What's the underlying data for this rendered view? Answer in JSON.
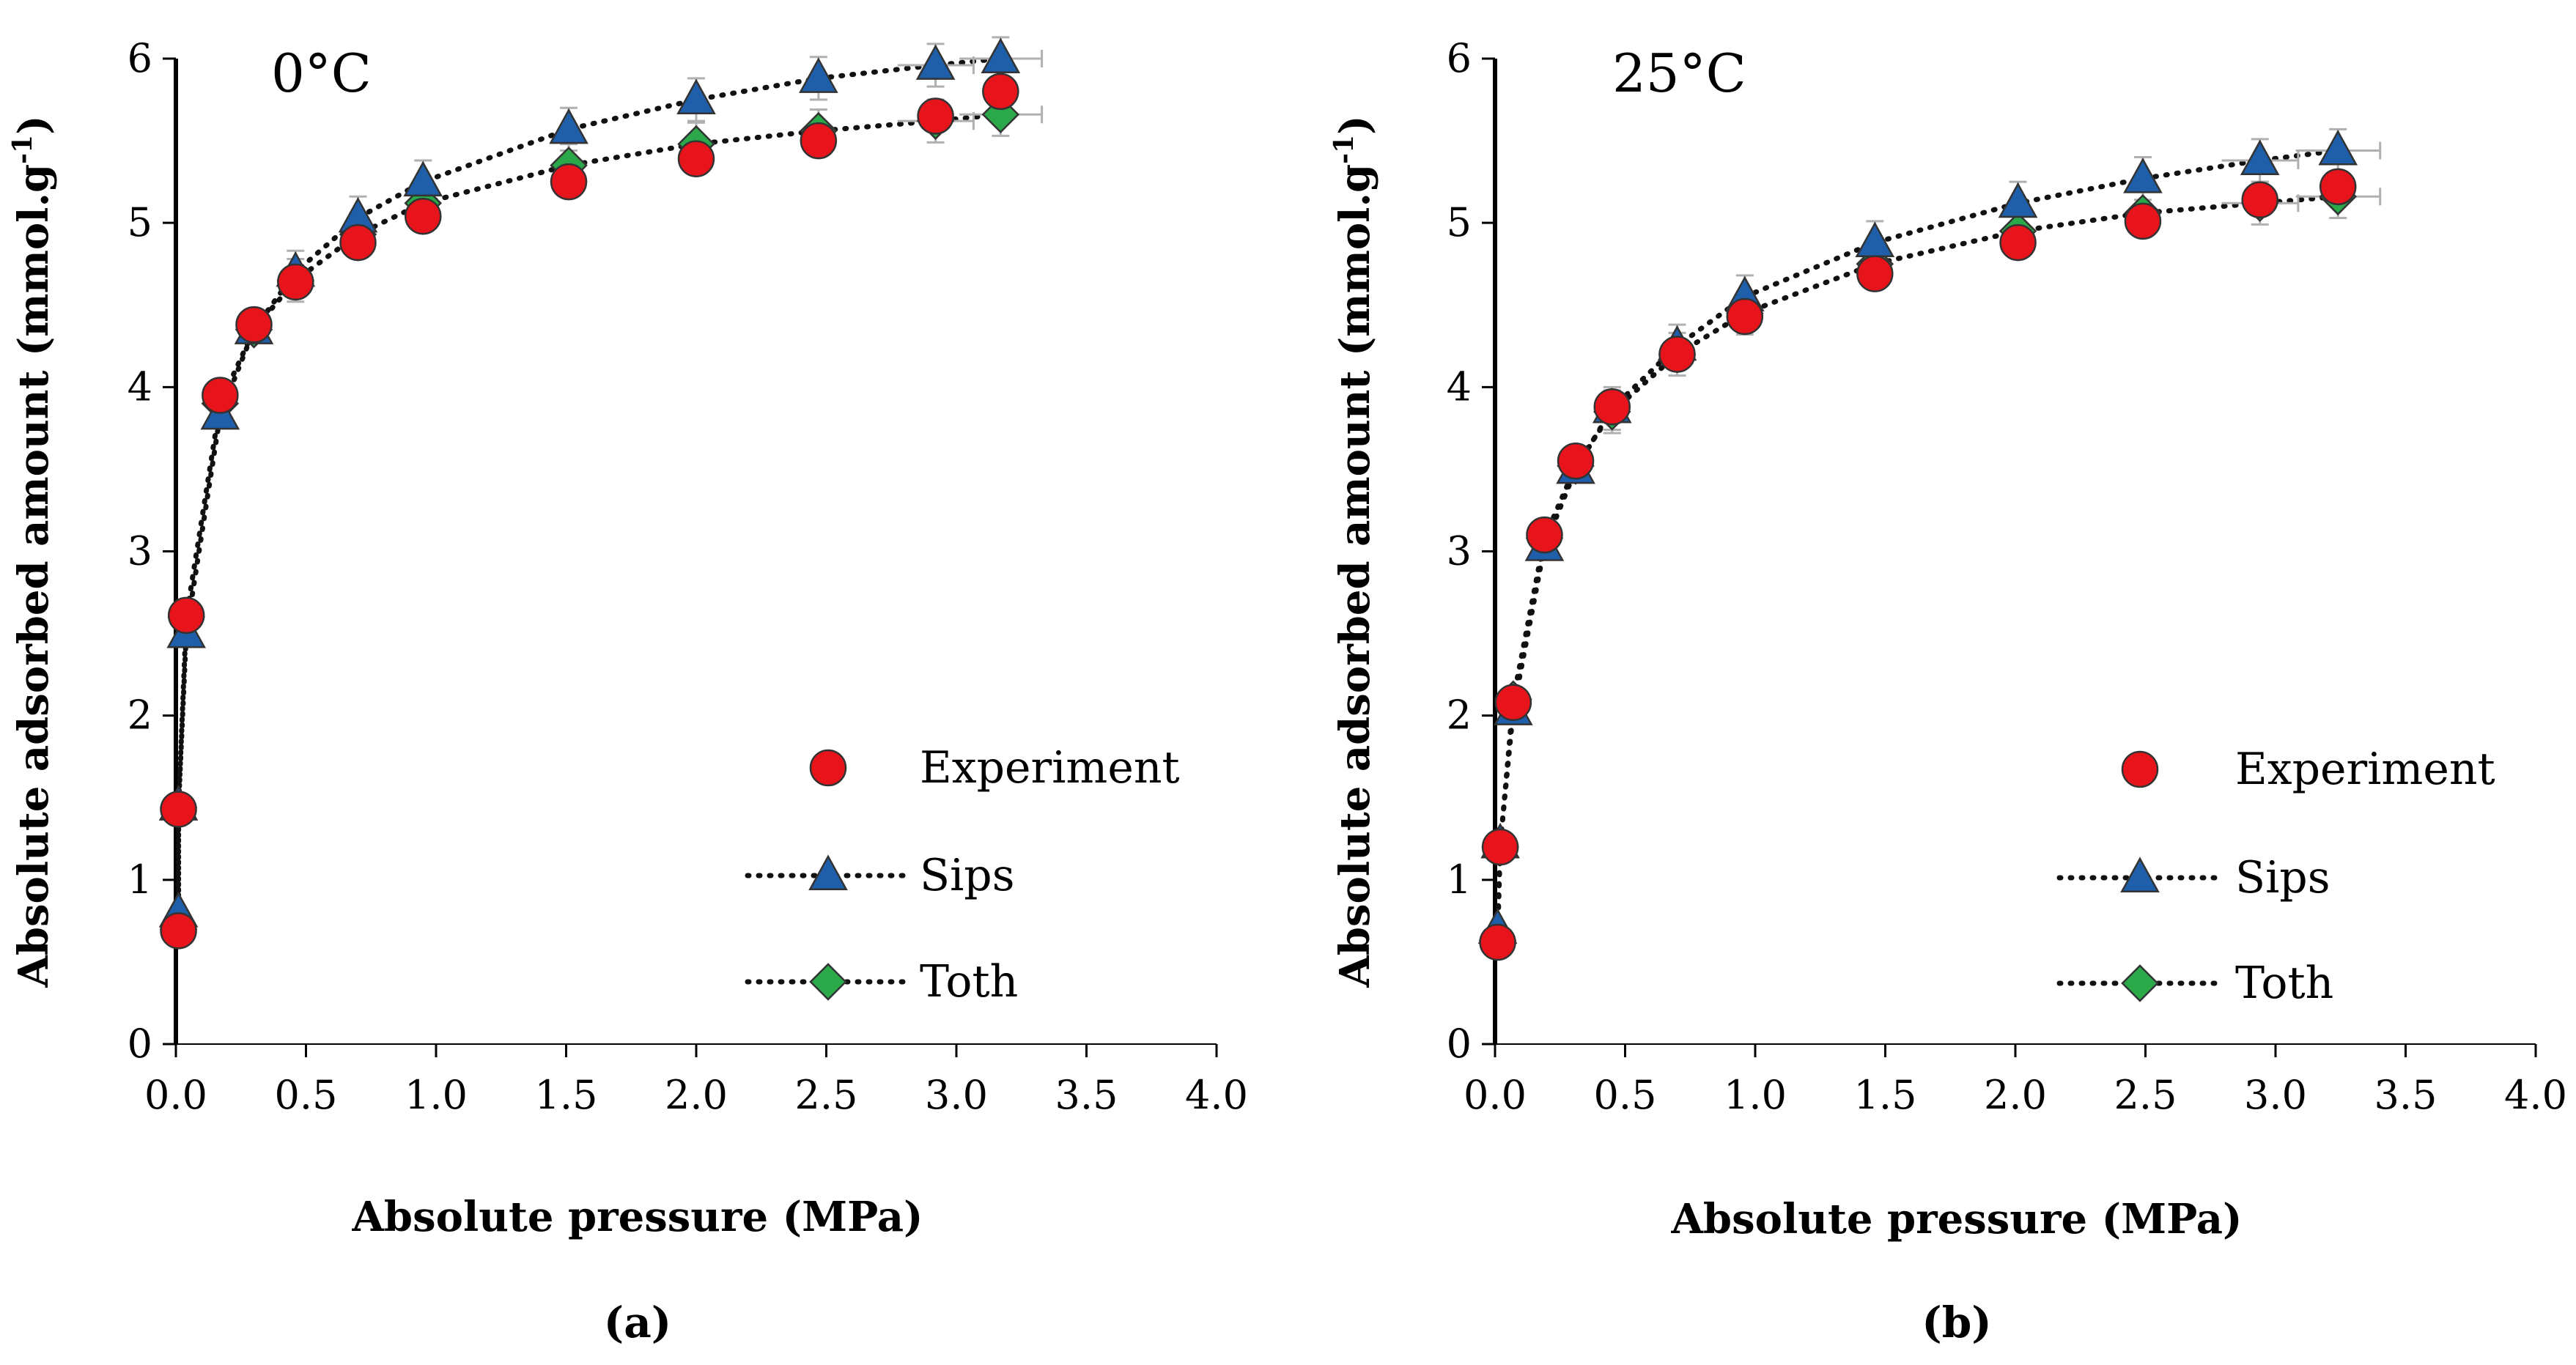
{
  "colors": {
    "experiment_fill": "#e8141b",
    "sips_fill": "#1f5ea8",
    "toth_fill": "#2aa84a",
    "marker_edge": "#333333",
    "errorbar": "#b0b0b0",
    "fit_line": "#111111"
  },
  "chart_data": [
    {
      "type": "scatter",
      "panel_label": "(a)",
      "annotation": "0°C",
      "xlabel": "Absolute pressure (MPa)",
      "ylabel_main": "Absolute adsorbed amount (mmol.g",
      "ylabel_sup": "-1",
      "ylabel_end": ")",
      "xlim": [
        0,
        4.0
      ],
      "ylim": [
        0,
        6
      ],
      "xticks": [
        "0.0",
        "0.5",
        "1.0",
        "1.5",
        "2.0",
        "2.5",
        "3.0",
        "3.5",
        "4.0"
      ],
      "yticks": [
        "0",
        "1",
        "2",
        "3",
        "4",
        "5",
        "6"
      ],
      "legend_position": "bottom-right",
      "series": [
        {
          "name": "Experiment",
          "marker": "circle",
          "x": [
            0.01,
            0.01,
            0.04,
            0.17,
            0.3,
            0.46,
            0.7,
            0.95,
            1.51,
            2.0,
            2.47,
            2.92,
            3.17
          ],
          "y": [
            0.69,
            1.43,
            2.61,
            3.95,
            4.38,
            4.64,
            4.88,
            5.04,
            5.25,
            5.39,
            5.5,
            5.65,
            5.8
          ]
        },
        {
          "name": "Sips",
          "marker": "triangle",
          "fit": true,
          "x": [
            0.01,
            0.01,
            0.04,
            0.17,
            0.3,
            0.46,
            0.7,
            0.95,
            1.51,
            2.0,
            2.47,
            2.92,
            3.17
          ],
          "y": [
            0.8,
            1.45,
            2.5,
            3.83,
            4.35,
            4.7,
            5.03,
            5.25,
            5.57,
            5.75,
            5.88,
            5.96,
            6.0
          ]
        },
        {
          "name": "Toth",
          "marker": "diamond",
          "fit": true,
          "x": [
            0.01,
            0.01,
            0.04,
            0.17,
            0.3,
            0.46,
            0.7,
            0.95,
            1.51,
            2.0,
            2.47,
            2.92,
            3.17
          ],
          "y": [
            0.7,
            1.44,
            2.6,
            3.9,
            4.35,
            4.65,
            4.93,
            5.12,
            5.35,
            5.48,
            5.56,
            5.62,
            5.66
          ]
        }
      ]
    },
    {
      "type": "scatter",
      "panel_label": "(b)",
      "annotation": "25°C",
      "xlabel": "Absolute pressure (MPa)",
      "ylabel_main": "Absolute adsorbed amount (mmol.g",
      "ylabel_sup": "-1",
      "ylabel_end": ")",
      "xlim": [
        0,
        4.0
      ],
      "ylim": [
        0,
        6
      ],
      "xticks": [
        "0.0",
        "0.5",
        "1.0",
        "1.5",
        "2.0",
        "2.5",
        "3.0",
        "3.5",
        "4.0"
      ],
      "yticks": [
        "0",
        "1",
        "2",
        "3",
        "4",
        "5",
        "6"
      ],
      "legend_position": "bottom-right",
      "series": [
        {
          "name": "Experiment",
          "marker": "circle",
          "x": [
            0.01,
            0.02,
            0.07,
            0.19,
            0.31,
            0.45,
            0.7,
            0.96,
            1.46,
            2.01,
            2.49,
            2.94,
            3.24
          ],
          "y": [
            0.62,
            1.2,
            2.08,
            3.1,
            3.55,
            3.88,
            4.2,
            4.43,
            4.69,
            4.88,
            5.01,
            5.14,
            5.22
          ]
        },
        {
          "name": "Sips",
          "marker": "triangle",
          "fit": true,
          "x": [
            0.01,
            0.02,
            0.07,
            0.19,
            0.31,
            0.45,
            0.7,
            0.96,
            1.46,
            2.01,
            2.49,
            2.94,
            3.24
          ],
          "y": [
            0.7,
            1.22,
            2.03,
            3.03,
            3.5,
            3.87,
            4.25,
            4.55,
            4.88,
            5.12,
            5.27,
            5.38,
            5.44
          ]
        },
        {
          "name": "Toth",
          "marker": "diamond",
          "fit": true,
          "x": [
            0.01,
            0.02,
            0.07,
            0.19,
            0.31,
            0.45,
            0.7,
            0.96,
            1.46,
            2.01,
            2.49,
            2.94,
            3.24
          ],
          "y": [
            0.63,
            1.2,
            2.1,
            3.08,
            3.52,
            3.85,
            4.2,
            4.45,
            4.75,
            4.95,
            5.06,
            5.12,
            5.16
          ]
        }
      ]
    }
  ]
}
